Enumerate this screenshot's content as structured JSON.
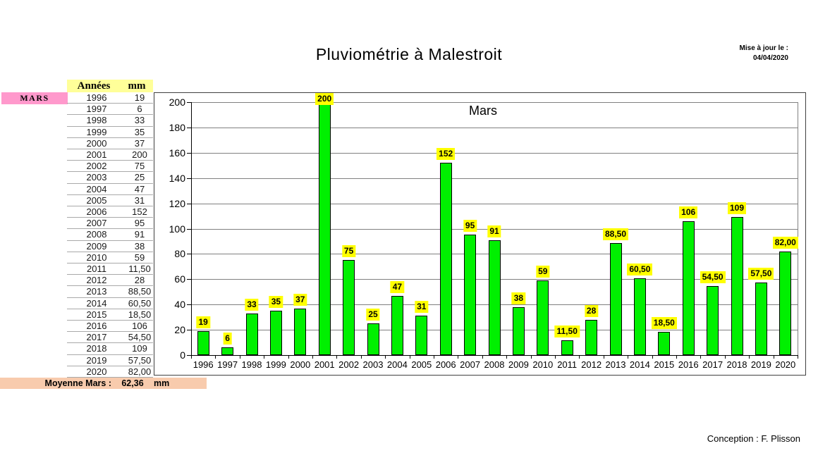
{
  "page": {
    "title": "Pluviométrie à Malestroit",
    "updated_label": "Mise à jour le :",
    "updated_date": "04/04/2020",
    "credit": "Conception : F. Plisson"
  },
  "table": {
    "row_label": "MARS",
    "header_year": "Années",
    "header_mm": "mm",
    "rows": [
      {
        "year": "1996",
        "mm": "19"
      },
      {
        "year": "1997",
        "mm": "6"
      },
      {
        "year": "1998",
        "mm": "33"
      },
      {
        "year": "1999",
        "mm": "35"
      },
      {
        "year": "2000",
        "mm": "37"
      },
      {
        "year": "2001",
        "mm": "200"
      },
      {
        "year": "2002",
        "mm": "75"
      },
      {
        "year": "2003",
        "mm": "25"
      },
      {
        "year": "2004",
        "mm": "47"
      },
      {
        "year": "2005",
        "mm": "31"
      },
      {
        "year": "2006",
        "mm": "152"
      },
      {
        "year": "2007",
        "mm": "95"
      },
      {
        "year": "2008",
        "mm": "91"
      },
      {
        "year": "2009",
        "mm": "38"
      },
      {
        "year": "2010",
        "mm": "59"
      },
      {
        "year": "2011",
        "mm": "11,50"
      },
      {
        "year": "2012",
        "mm": "28"
      },
      {
        "year": "2013",
        "mm": "88,50"
      },
      {
        "year": "2014",
        "mm": "60,50"
      },
      {
        "year": "2015",
        "mm": "18,50"
      },
      {
        "year": "2016",
        "mm": "106"
      },
      {
        "year": "2017",
        "mm": "54,50"
      },
      {
        "year": "2018",
        "mm": "109"
      },
      {
        "year": "2019",
        "mm": "57,50"
      },
      {
        "year": "2020",
        "mm": "82,00"
      }
    ],
    "footer": {
      "label": "Moyenne Mars :",
      "value": "62,36",
      "unit": "mm"
    }
  },
  "chart_data": {
    "type": "bar",
    "title": "Mars",
    "categories": [
      "1996",
      "1997",
      "1998",
      "1999",
      "2000",
      "2001",
      "2002",
      "2003",
      "2004",
      "2005",
      "2006",
      "2007",
      "2008",
      "2009",
      "2010",
      "2011",
      "2012",
      "2013",
      "2014",
      "2015",
      "2016",
      "2017",
      "2018",
      "2019",
      "2020"
    ],
    "values": [
      19,
      6,
      33,
      35,
      37,
      200,
      75,
      25,
      47,
      31,
      152,
      95,
      91,
      38,
      59,
      11.5,
      28,
      88.5,
      60.5,
      18.5,
      106,
      54.5,
      109,
      57.5,
      82
    ],
    "point_labels": [
      "19",
      "6",
      "33",
      "35",
      "37",
      "200",
      "75",
      "25",
      "47",
      "31",
      "152",
      "95",
      "91",
      "38",
      "59",
      "11,50",
      "28",
      "88,50",
      "60,50",
      "18,50",
      "106",
      "54,50",
      "109",
      "57,50",
      "82,00"
    ],
    "xlabel": "",
    "ylabel": "",
    "ylim": [
      0,
      200
    ],
    "ytick_step": 20,
    "grid": true,
    "legend": "none"
  },
  "colors": {
    "bar": "#00F000",
    "bar_border": "#000000",
    "point_label_bg": "#FFFF00",
    "header_bg": "#FFFF99",
    "month_bg": "#FF99CC",
    "footer_bg": "#F8CBAD"
  }
}
